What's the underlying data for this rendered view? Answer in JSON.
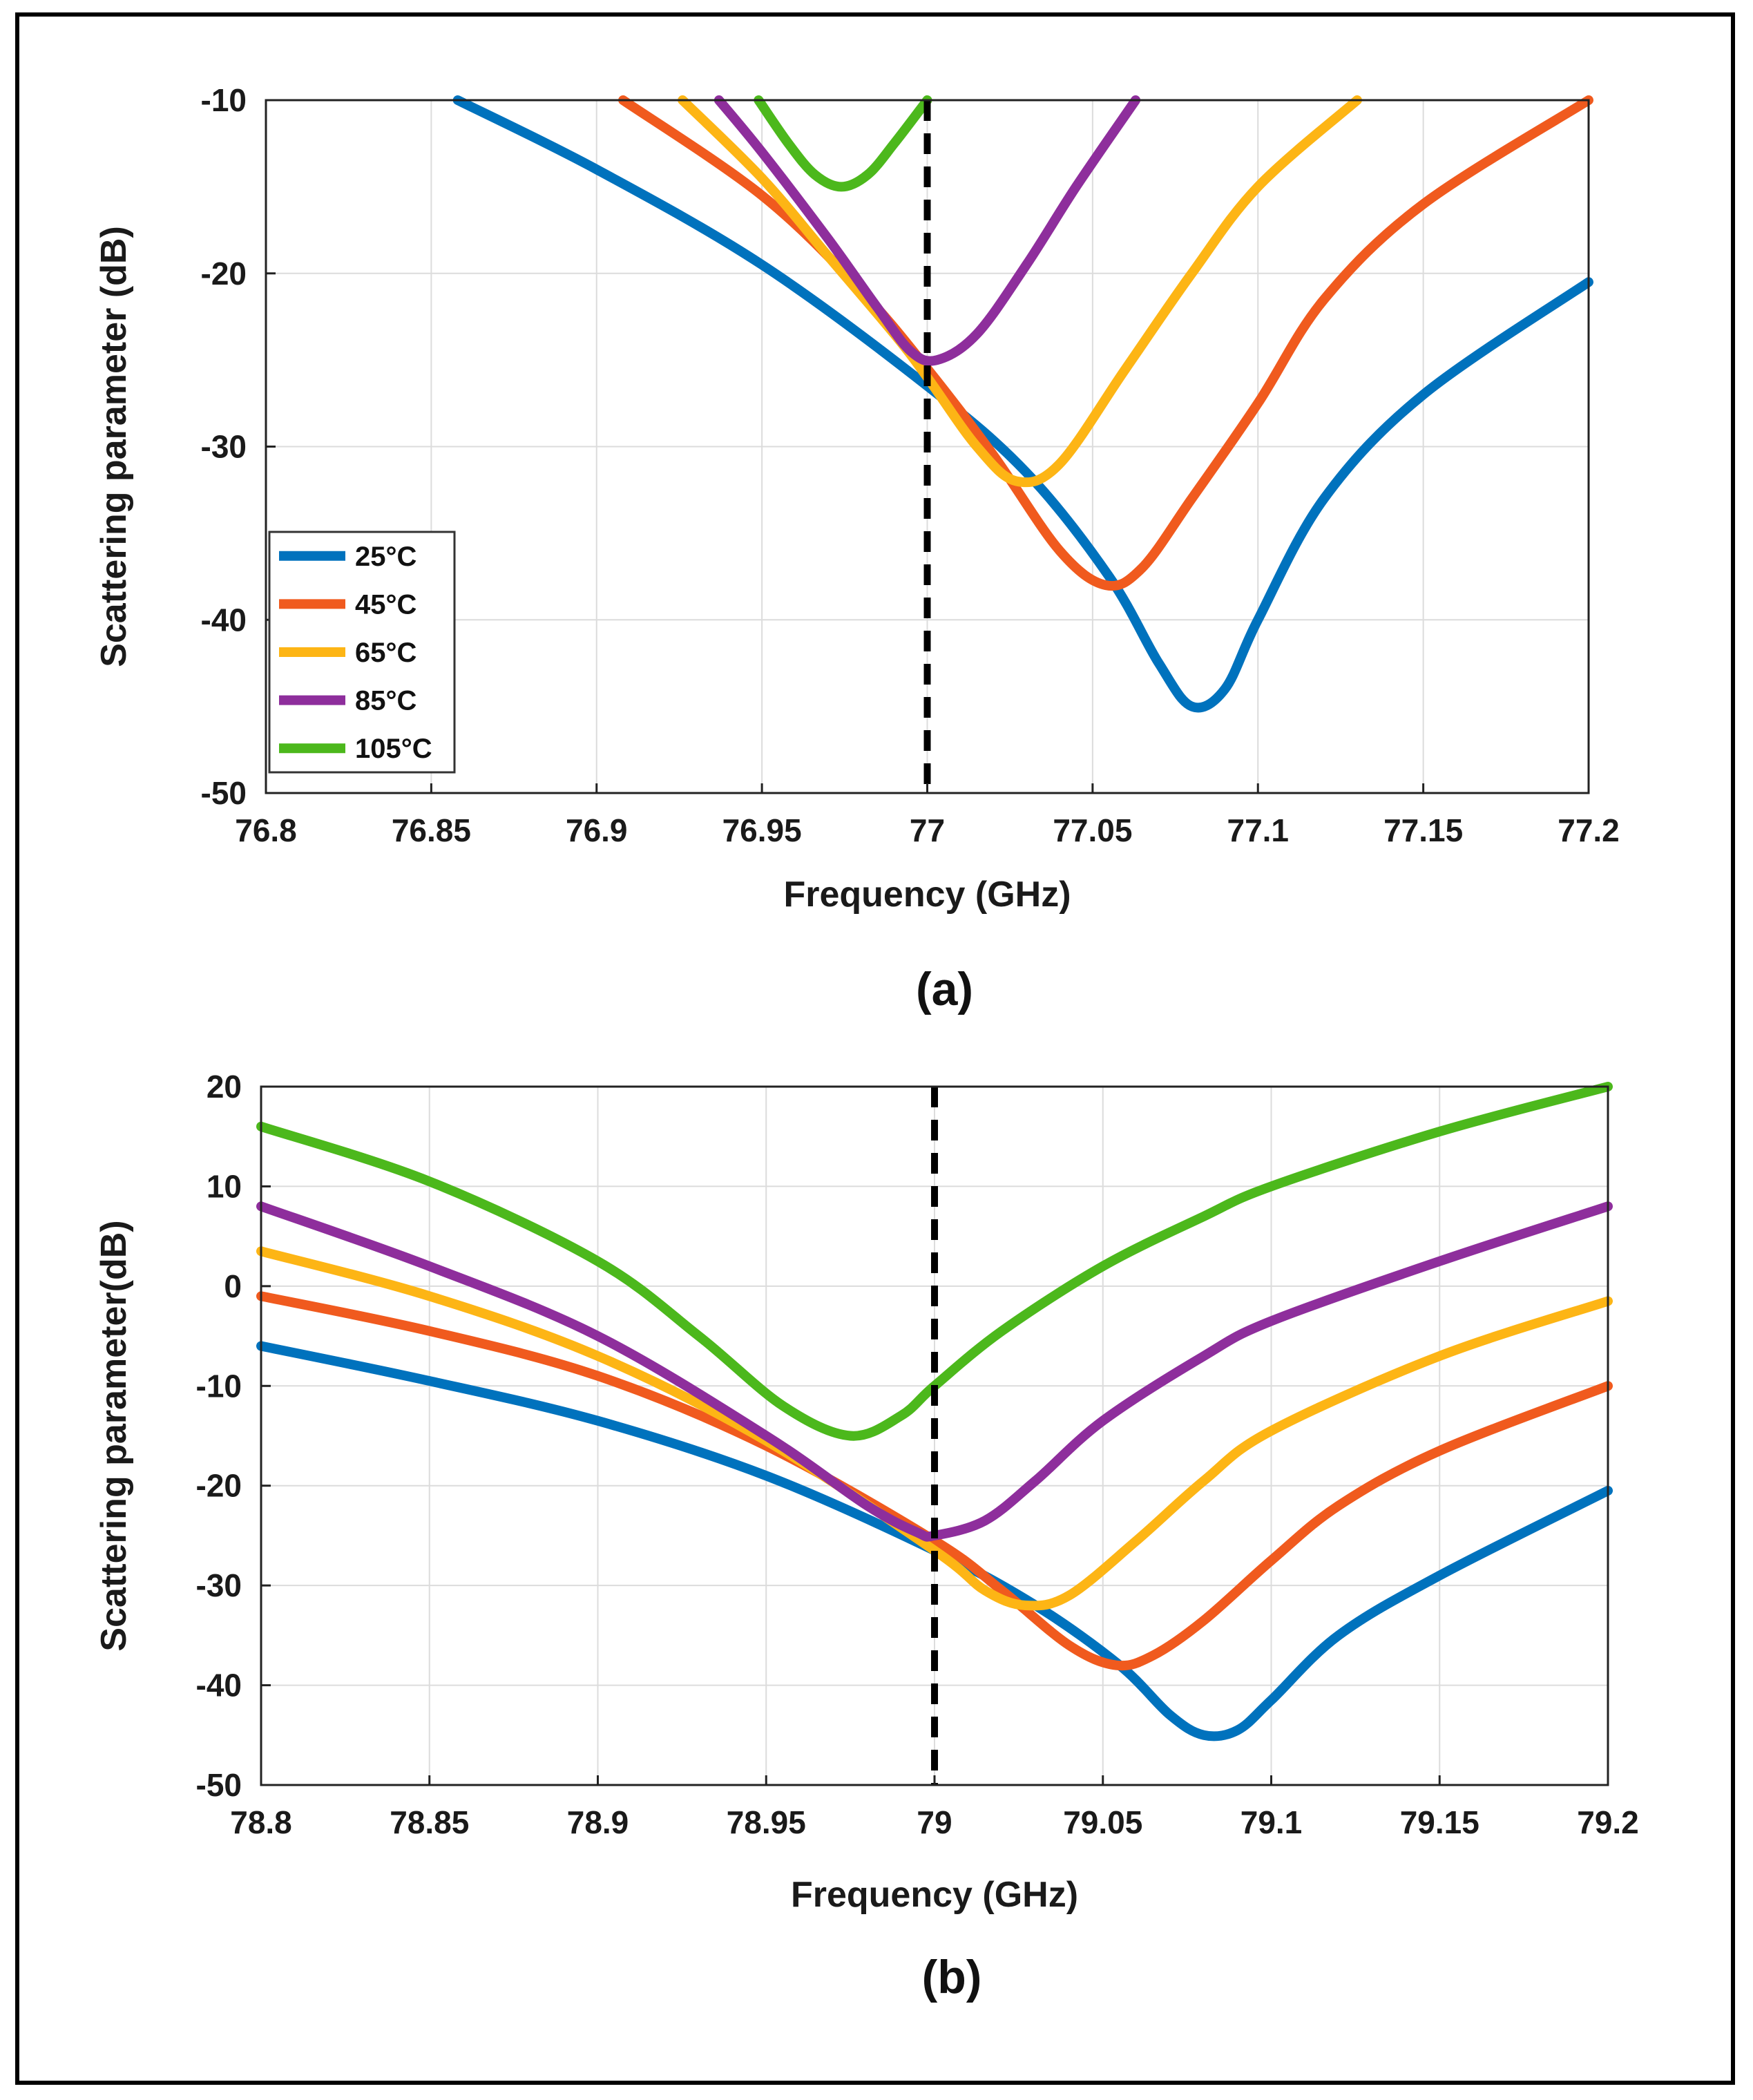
{
  "chart_data": [
    {
      "type": "line",
      "panel_label": "(a)",
      "xlabel": "Frequency (GHz)",
      "ylabel": "Scattering parameter (dB)",
      "xlim": [
        76.8,
        77.2
      ],
      "ylim": [
        -50,
        -10
      ],
      "xticks": [
        76.8,
        76.85,
        76.9,
        76.95,
        77,
        77.05,
        77.1,
        77.15,
        77.2
      ],
      "xtick_labels": [
        "76.8",
        "76.85",
        "76.9",
        "76.95",
        "77",
        "77.05",
        "77.1",
        "77.15",
        "77.2"
      ],
      "yticks": [
        -10,
        -20,
        -30,
        -40,
        -50
      ],
      "ytick_labels": [
        "-10",
        "-20",
        "-30",
        "-40",
        "-50"
      ],
      "grid": true,
      "legend_position": "bottom-left",
      "reference_line_x": 77,
      "series": [
        {
          "name": "25°C",
          "color": "#0072bd",
          "x": [
            76.858,
            76.9,
            76.95,
            77.0,
            77.03,
            77.055,
            77.07,
            77.08,
            77.09,
            77.1,
            77.12,
            77.15,
            77.2
          ],
          "y": [
            -10,
            -14,
            -19.5,
            -26.5,
            -31.5,
            -37.5,
            -42.5,
            -45,
            -44,
            -40,
            -33,
            -27,
            -20.5
          ]
        },
        {
          "name": "45°C",
          "color": "#f05a1e",
          "x": [
            76.908,
            76.95,
            76.98,
            77.0,
            77.02,
            77.04,
            77.054,
            77.065,
            77.08,
            77.1,
            77.12,
            77.15,
            77.2
          ],
          "y": [
            -10,
            -15.5,
            -21,
            -25.5,
            -30.5,
            -36,
            -38,
            -37,
            -33,
            -27.5,
            -21.5,
            -16,
            -10
          ]
        },
        {
          "name": "65°C",
          "color": "#fdb515",
          "x": [
            76.926,
            76.95,
            76.97,
            76.99,
            77.0,
            77.015,
            77.027,
            77.04,
            77.06,
            77.08,
            77.1,
            77.13
          ],
          "y": [
            -10,
            -14.5,
            -19,
            -23.5,
            -26,
            -30,
            -32,
            -31,
            -25.5,
            -20,
            -15,
            -10
          ]
        },
        {
          "name": "85°C",
          "color": "#8e2e9c",
          "x": [
            76.937,
            76.95,
            76.97,
            76.985,
            76.995,
            77.003,
            77.015,
            77.03,
            77.045,
            77.063
          ],
          "y": [
            -10,
            -13,
            -18,
            -22,
            -24.5,
            -25,
            -23.5,
            -19.5,
            -15,
            -10
          ]
        },
        {
          "name": "105°C",
          "color": "#4cb81c",
          "x": [
            76.949,
            76.958,
            76.966,
            76.974,
            76.982,
            76.99,
            77.0
          ],
          "y": [
            -10,
            -12.5,
            -14.3,
            -15,
            -14.3,
            -12.5,
            -10
          ]
        }
      ]
    },
    {
      "type": "line",
      "panel_label": "(b)",
      "xlabel": "Frequency (GHz)",
      "ylabel": "Scattering parameter(dB)",
      "xlim": [
        78.8,
        79.2
      ],
      "ylim": [
        -50,
        20
      ],
      "xticks": [
        78.8,
        78.85,
        78.9,
        78.95,
        79,
        79.05,
        79.1,
        79.15,
        79.2
      ],
      "xtick_labels": [
        "78.8",
        "78.85",
        "78.9",
        "78.95",
        "79",
        "79.05",
        "79.1",
        "79.15",
        "79.2"
      ],
      "yticks": [
        20,
        10,
        0,
        -10,
        -20,
        -30,
        -40,
        -50
      ],
      "ytick_labels": [
        "20",
        "10",
        "0",
        "-10",
        "-20",
        "-30",
        "-40",
        "-50"
      ],
      "grid": true,
      "legend_position": "none",
      "reference_line_x": 79,
      "series": [
        {
          "name": "25°C",
          "color": "#0072bd",
          "x": [
            78.8,
            78.85,
            78.9,
            78.95,
            79.0,
            79.03,
            79.055,
            79.07,
            79.08,
            79.09,
            79.1,
            79.12,
            79.15,
            79.2
          ],
          "y": [
            -6,
            -9.5,
            -13.5,
            -19,
            -26.5,
            -32,
            -38,
            -43,
            -45,
            -44.5,
            -41.5,
            -35,
            -29,
            -20.5
          ]
        },
        {
          "name": "45°C",
          "color": "#f05a1e",
          "x": [
            78.8,
            78.85,
            78.9,
            78.95,
            79.0,
            79.02,
            79.04,
            79.054,
            79.065,
            79.08,
            79.1,
            79.12,
            79.15,
            79.2
          ],
          "y": [
            -1,
            -4.5,
            -9,
            -16,
            -25.5,
            -30.5,
            -36,
            -38,
            -37,
            -33.5,
            -27.5,
            -22,
            -16.5,
            -10
          ]
        },
        {
          "name": "65°C",
          "color": "#fdb515",
          "x": [
            78.8,
            78.85,
            78.9,
            78.95,
            79.0,
            79.015,
            79.027,
            79.04,
            79.06,
            79.08,
            79.1,
            79.15,
            79.2
          ],
          "y": [
            3.5,
            -1,
            -7,
            -15.5,
            -26.5,
            -30.5,
            -32,
            -31,
            -25.5,
            -19.5,
            -14.5,
            -7,
            -1.5
          ]
        },
        {
          "name": "85°C",
          "color": "#8e2e9c",
          "x": [
            78.8,
            78.85,
            78.9,
            78.95,
            78.98,
            78.995,
            79.0,
            79.015,
            79.03,
            79.05,
            79.08,
            79.1,
            79.15,
            79.2
          ],
          "y": [
            8,
            2,
            -5,
            -15,
            -22,
            -24.7,
            -25,
            -23.5,
            -19.5,
            -13.5,
            -7,
            -3.5,
            2.5,
            8
          ]
        },
        {
          "name": "105°C",
          "color": "#4cb81c",
          "x": [
            78.8,
            78.85,
            78.9,
            78.93,
            78.955,
            78.975,
            78.99,
            79.0,
            79.02,
            79.05,
            79.08,
            79.1,
            79.15,
            79.2
          ],
          "y": [
            16,
            10.5,
            2.5,
            -5,
            -12,
            -15,
            -13,
            -10,
            -4.5,
            2,
            7,
            10,
            15.5,
            20
          ]
        }
      ]
    }
  ]
}
